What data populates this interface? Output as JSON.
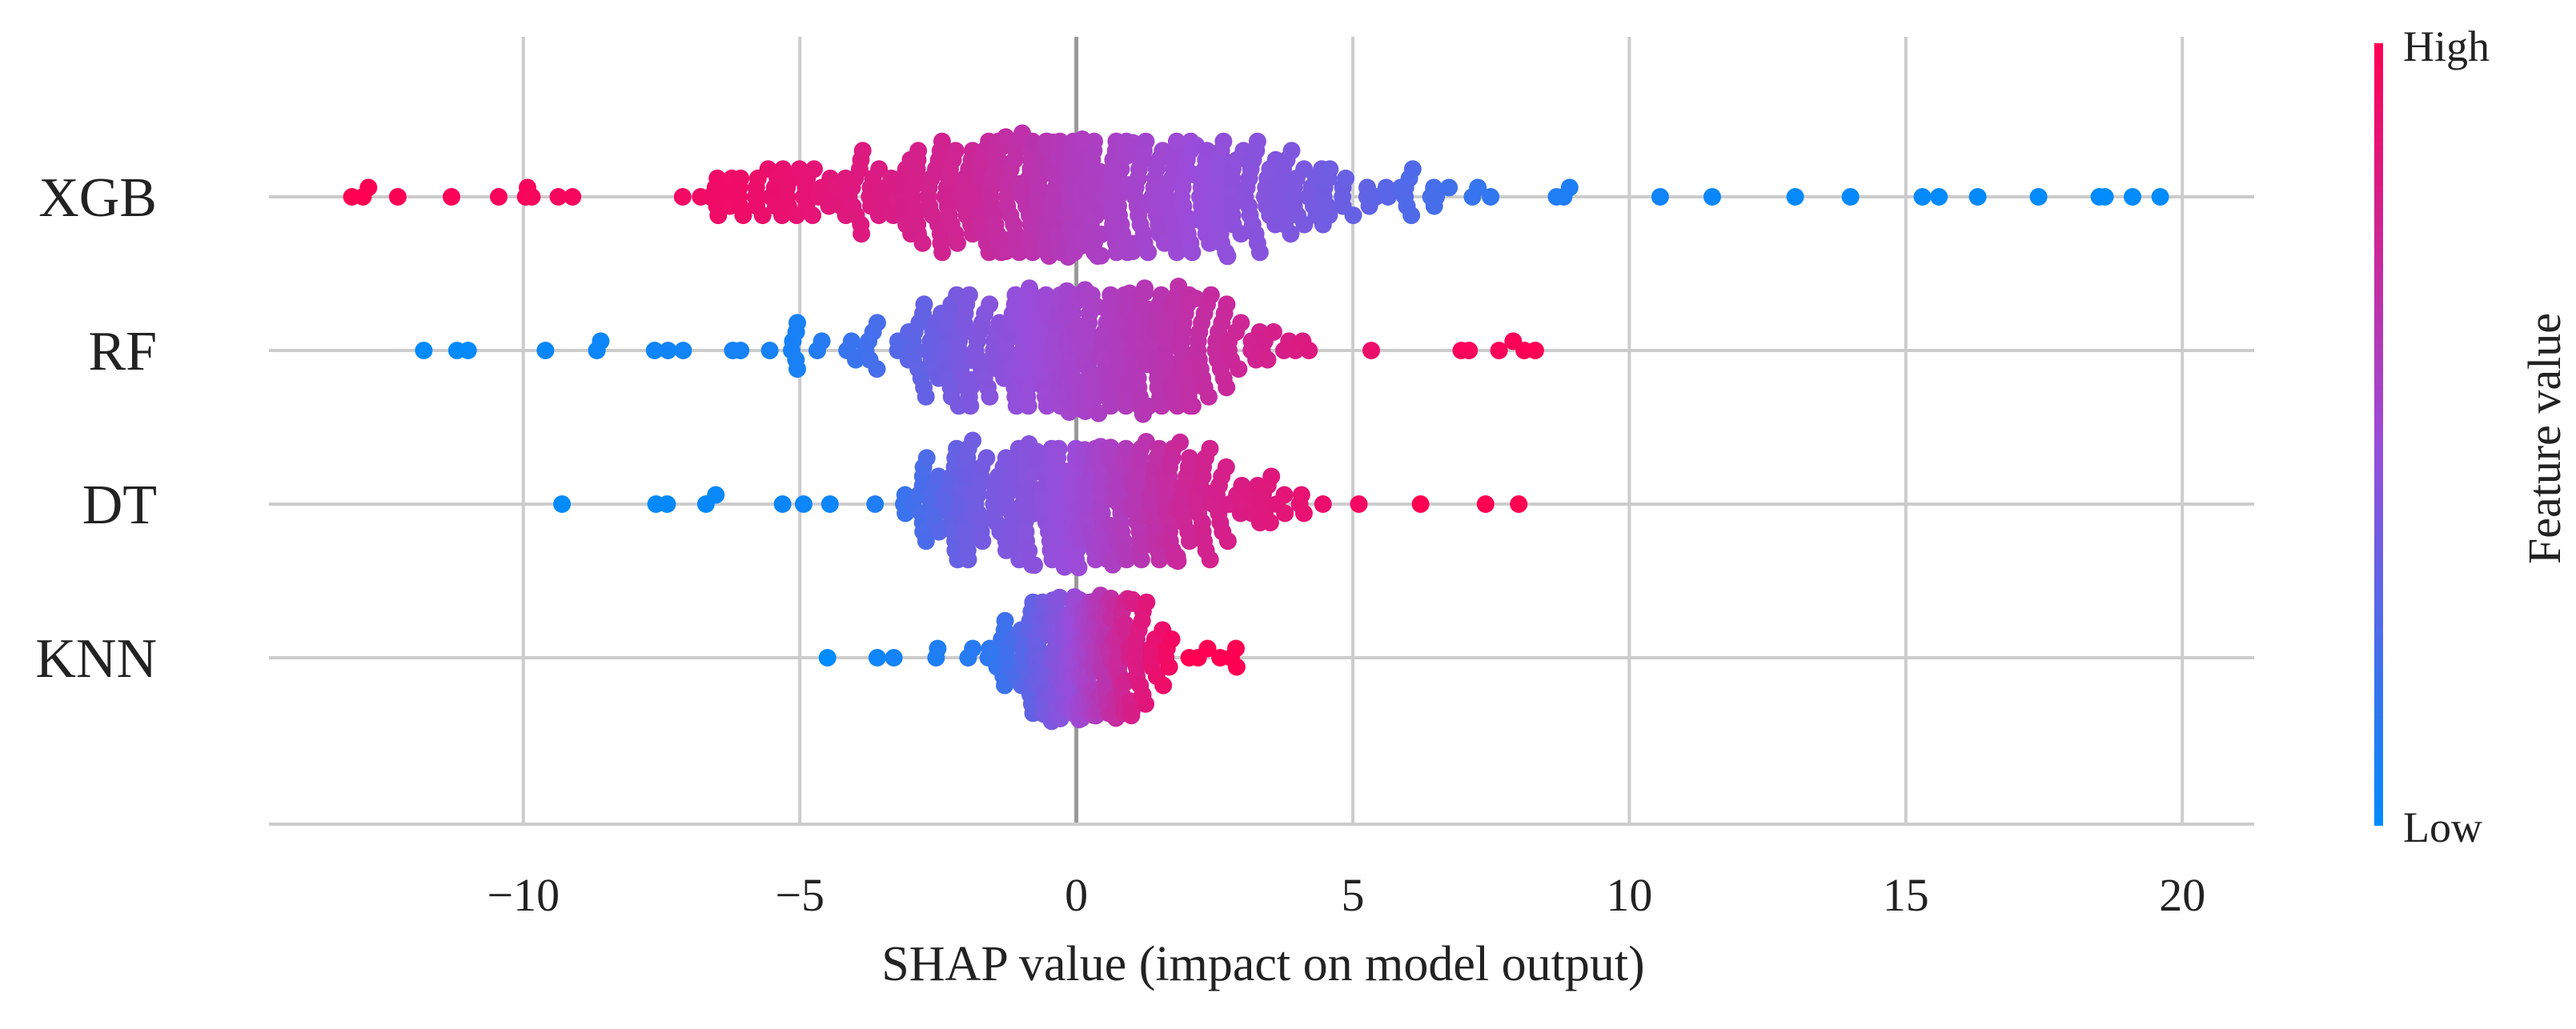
{
  "chart_data": {
    "type": "scatter",
    "subtype": "shap-beeswarm",
    "title": "",
    "xlabel": "SHAP value (impact on model output)",
    "ylabel": "",
    "xlim": [
      -14.6,
      21.3
    ],
    "xticks": [
      -10,
      -5,
      0,
      5,
      10,
      15,
      20
    ],
    "xtick_labels": [
      "−10",
      "−5",
      "0",
      "5",
      "10",
      "15",
      "20"
    ],
    "grid": true,
    "features": [
      "XGB",
      "RF",
      "DT",
      "KNN"
    ],
    "series": [
      {
        "name": "XGB",
        "range": [
          -13.1,
          19.6
        ],
        "spread": 6.5,
        "scale": 2.2,
        "n": 520,
        "outliers": [
          -13.1,
          -12.9,
          -12.8,
          -11.3,
          11.5,
          13.0,
          14.0,
          15.3,
          15.6,
          16.3,
          17.4,
          18.5,
          18.6,
          19.1,
          19.6
        ],
        "color_map": [
          [
            -13,
            1.0
          ],
          [
            -6,
            0.92
          ],
          [
            -2,
            0.75
          ],
          [
            0,
            0.6
          ],
          [
            4,
            0.4
          ],
          [
            8,
            0.12
          ],
          [
            12,
            0.02
          ],
          [
            20,
            0.0
          ]
        ]
      },
      {
        "name": "RF",
        "range": [
          -11.8,
          8.3
        ],
        "spread": 3.0,
        "scale": 1.5,
        "n": 420,
        "outliers": [
          -11.8,
          -11.2,
          -11.0,
          -9.6,
          7.9,
          8.1,
          8.3
        ],
        "color_map": [
          [
            -12,
            0.0
          ],
          [
            -5,
            0.08
          ],
          [
            -2,
            0.4
          ],
          [
            0,
            0.55
          ],
          [
            3,
            0.75
          ],
          [
            6,
            0.95
          ],
          [
            9,
            1.0
          ]
        ]
      },
      {
        "name": "DT",
        "range": [
          -9.3,
          8.0
        ],
        "spread": 2.8,
        "scale": 1.3,
        "n": 380,
        "outliers": [
          -9.3,
          -7.6,
          -7.4,
          7.4,
          8.0
        ],
        "color_map": [
          [
            -9,
            0.0
          ],
          [
            -4,
            0.05
          ],
          [
            -2,
            0.35
          ],
          [
            0,
            0.5
          ],
          [
            2,
            0.75
          ],
          [
            6,
            1.0
          ],
          [
            8,
            1.0
          ]
        ]
      },
      {
        "name": "KNN",
        "range": [
          -4.5,
          2.9
        ],
        "spread": 1.1,
        "scale": 0.55,
        "n": 300,
        "outliers": [
          -4.5,
          -3.6,
          -3.3,
          2.6,
          2.8,
          2.9
        ],
        "color_map": [
          [
            -4.5,
            0.0
          ],
          [
            -1.5,
            0.15
          ],
          [
            0,
            0.5
          ],
          [
            1,
            0.8
          ],
          [
            2,
            1.0
          ],
          [
            3,
            1.0
          ]
        ]
      }
    ],
    "colorbar": {
      "label": "Feature value",
      "high_label": "High",
      "low_label": "Low",
      "low_color": "#008bfb",
      "mid_color": "#9b4bd8",
      "high_color": "#ff0052"
    }
  }
}
